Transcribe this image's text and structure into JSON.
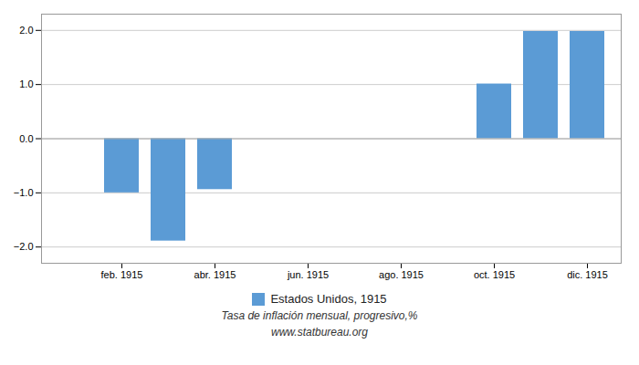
{
  "chart_data": {
    "type": "bar",
    "subtitle": "Tasa de inflación mensual, progresivo,%",
    "source": "www.statbureau.org",
    "categories": [
      null,
      "feb. 1915",
      null,
      "abr. 1915",
      null,
      "jun. 1915",
      null,
      "ago. 1915",
      null,
      "oct. 1915",
      null,
      "dic. 1915"
    ],
    "series": [
      {
        "name": "Estados Unidos, 1915",
        "color": "#5b9bd5",
        "values": [
          null,
          -1.0,
          -1.89,
          -0.94,
          null,
          null,
          null,
          null,
          null,
          1.01,
          1.98,
          1.98
        ]
      }
    ],
    "ylim": [
      -2.3,
      2.3
    ],
    "yticks": [
      -2,
      -1,
      0,
      1,
      2
    ],
    "grid": true,
    "legend": "bottom"
  }
}
